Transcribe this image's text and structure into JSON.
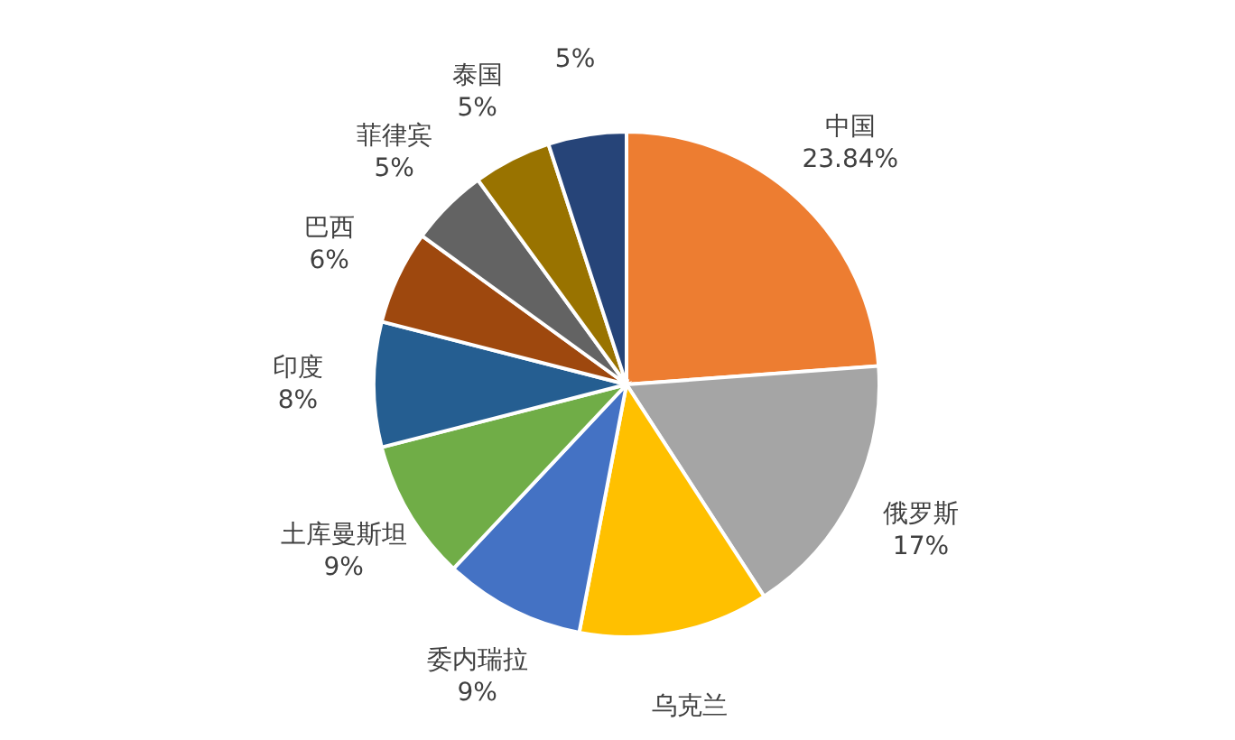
{
  "chart_data": {
    "type": "pie",
    "categories": [
      "中国",
      "俄罗斯",
      "乌克兰",
      "委内瑞拉",
      "土库曼斯坦",
      "印度",
      "巴西",
      "菲律宾",
      "泰国",
      null
    ],
    "values": [
      23.84,
      17,
      12.16,
      9,
      9,
      8,
      6,
      5,
      5,
      5
    ],
    "value_labels": [
      "23.84%",
      "17%",
      null,
      "9%",
      "9%",
      "8%",
      "6%",
      "5%",
      "5%",
      "5%"
    ],
    "colors": [
      "#ed7d31",
      "#a5a5a5",
      "#ffc000",
      "#4472c4",
      "#70ad47",
      "#255e91",
      "#9e480e",
      "#636363",
      "#997300",
      "#264478"
    ],
    "legend": false
  }
}
